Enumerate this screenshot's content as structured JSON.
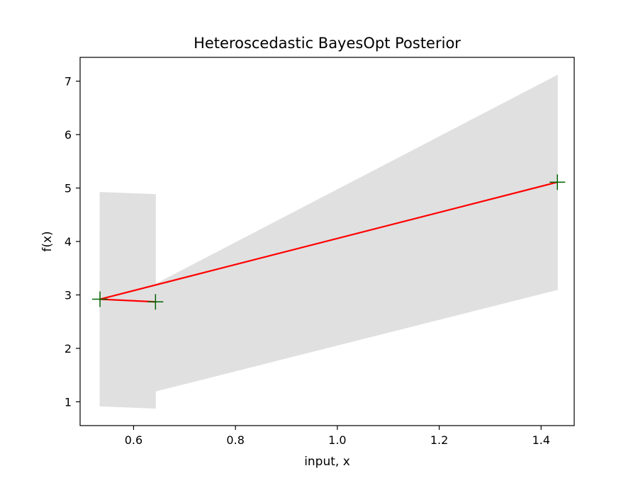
{
  "chart_data": {
    "type": "line",
    "title": "Heteroscedastic BayesOpt Posterior",
    "xlabel": "input, x",
    "ylabel": "f(x)",
    "xlim": [
      0.495,
      1.465
    ],
    "ylim": [
      0.555,
      7.445
    ],
    "xticks": [
      0.6,
      0.8,
      1.0,
      1.2,
      1.4
    ],
    "xtick_labels": [
      "0.6",
      "0.8",
      "1.0",
      "1.2",
      "1.4"
    ],
    "yticks": [
      1,
      2,
      3,
      4,
      5,
      6,
      7
    ],
    "ytick_labels": [
      "1",
      "2",
      "3",
      "4",
      "5",
      "6",
      "7"
    ],
    "grid": false,
    "series": [
      {
        "kind": "band",
        "x": [
          0.534,
          0.643,
          0.643,
          1.432
        ],
        "lower": [
          0.92,
          0.88,
          1.2,
          3.1
        ],
        "upper": [
          4.92,
          4.88,
          3.2,
          7.11
        ],
        "color": "#e0e0e0"
      },
      {
        "kind": "line",
        "x": [
          0.534,
          0.643,
          0.534,
          1.432
        ],
        "y": [
          2.92,
          2.87,
          2.92,
          5.11
        ],
        "color": "#ff0000"
      },
      {
        "kind": "markers",
        "marker": "+",
        "x": [
          0.534,
          0.643,
          1.432
        ],
        "y": [
          2.92,
          2.87,
          5.11
        ],
        "color": "#006400"
      }
    ]
  }
}
